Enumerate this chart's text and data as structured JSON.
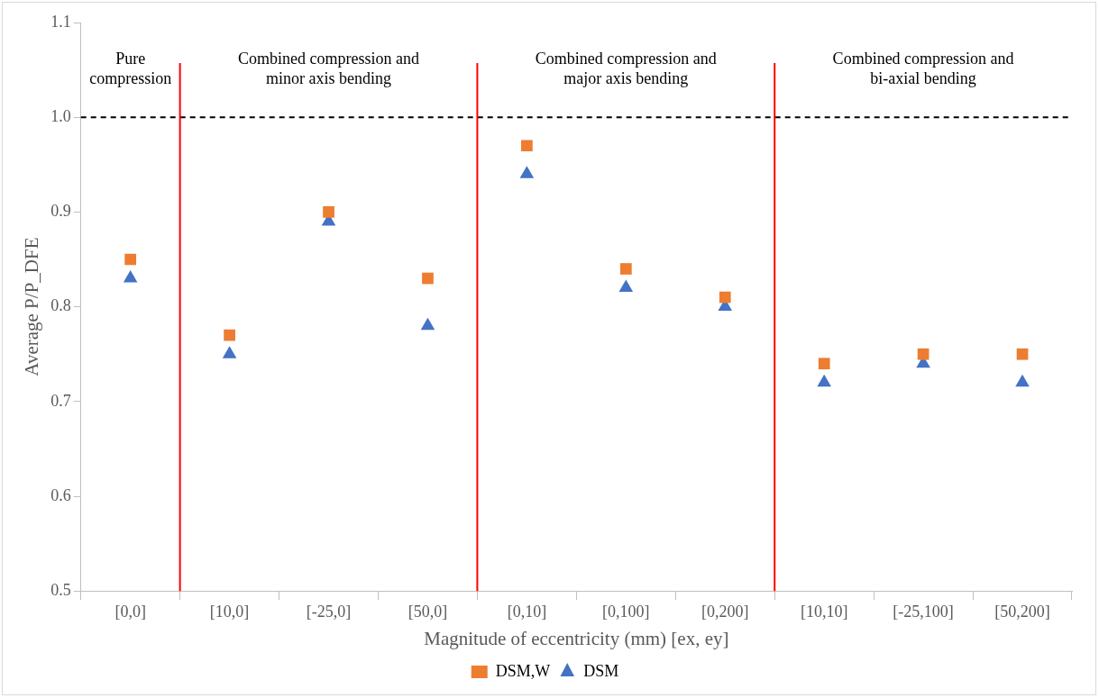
{
  "chart_data": {
    "type": "scatter",
    "xlabel": "Magnitude of eccentricity (mm) [ex, ey]",
    "ylabel": "Average P/P_DFE",
    "categories": [
      "[0,0]",
      "[10,0]",
      "[-25,0]",
      "[50,0]",
      "[0,10]",
      "[0,100]",
      "[0,200]",
      "[10,10]",
      "[-25,100]",
      "[50,200]"
    ],
    "series": [
      {
        "name": "DSM,W",
        "color": "#ed7d31",
        "marker": "square",
        "values": [
          0.85,
          0.77,
          0.9,
          0.83,
          0.97,
          0.84,
          0.81,
          0.74,
          0.75,
          0.75
        ]
      },
      {
        "name": "DSM",
        "color": "#4472c4",
        "marker": "triangle",
        "values": [
          0.83,
          0.75,
          0.89,
          0.78,
          0.94,
          0.82,
          0.8,
          0.72,
          0.74,
          0.72
        ]
      }
    ],
    "ylim": [
      0.5,
      1.1
    ],
    "yticks": [
      0.5,
      0.6,
      0.7,
      0.8,
      0.9,
      {
        "value": 1,
        "label": "1.0"
      },
      1.1
    ],
    "grid": false,
    "legend": "bottom",
    "ref_lines": [
      {
        "axis": "y",
        "value": 1,
        "color": "#000000",
        "line_style": "dashed"
      }
    ],
    "annotations": [
      "Pure\ncompression",
      "Combined compression and\nminor axis bending",
      "Combined compression and\nmajor axis bending",
      "Combined compression and\nbi-axial bending"
    ]
  }
}
